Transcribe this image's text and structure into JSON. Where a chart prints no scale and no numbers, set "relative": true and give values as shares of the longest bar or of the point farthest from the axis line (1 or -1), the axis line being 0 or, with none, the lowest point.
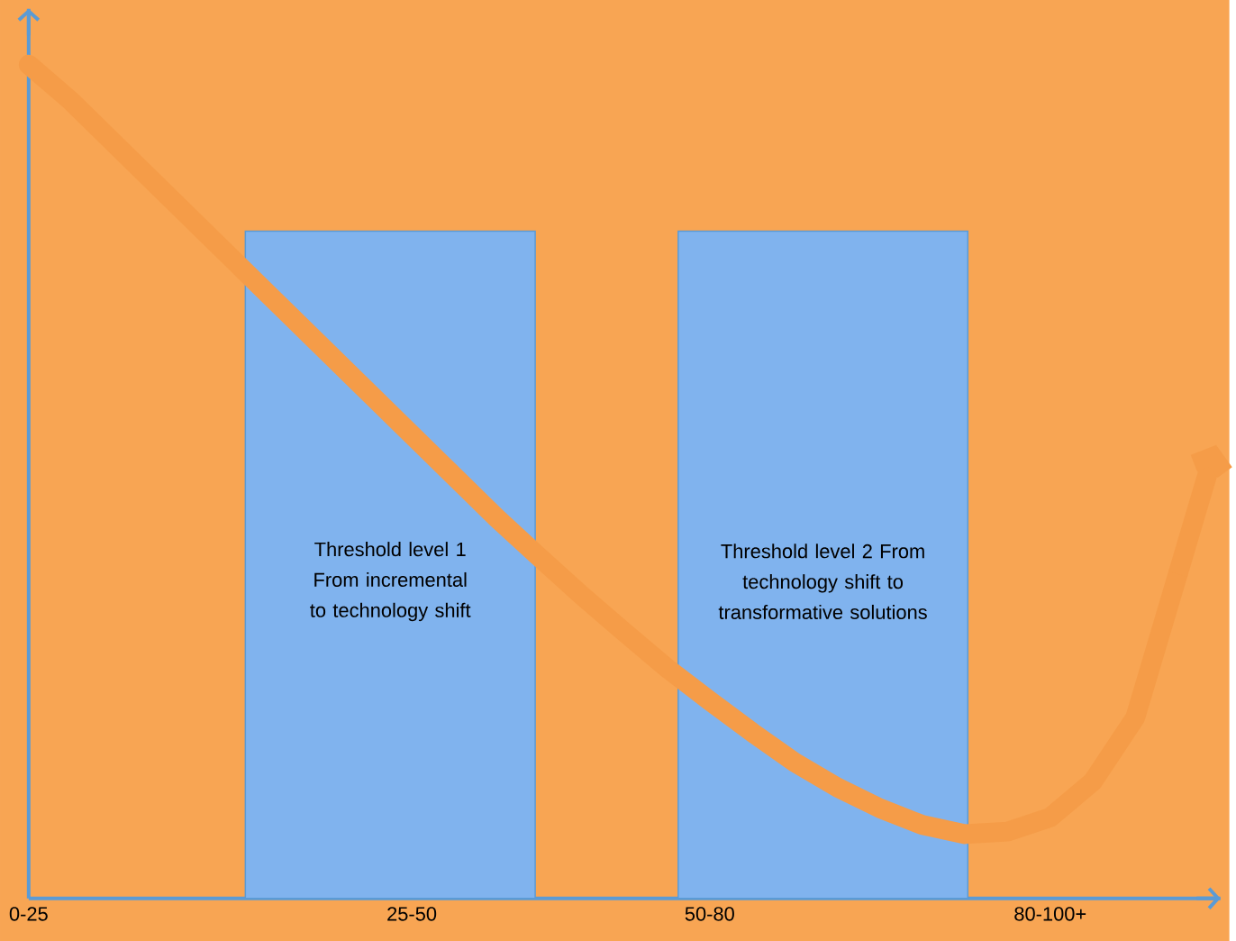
{
  "chart_data": {
    "type": "line",
    "relative": true,
    "categories": [
      "0-25",
      null,
      null,
      null,
      null,
      null,
      null,
      null,
      null,
      "25-50",
      null,
      null,
      null,
      null,
      null,
      null,
      "50-80",
      null,
      null,
      null,
      null,
      null,
      null,
      null,
      "80-100+",
      null,
      null,
      null
    ],
    "annotations": [
      "Threshold level 1 From incremental to technology shift",
      "Threshold level 2 From technology shift to transformative solutions"
    ],
    "series": [
      {
        "color": "#f59c48",
        "values": [
          1.0,
          0.956,
          0.906,
          0.856,
          0.806,
          0.756,
          0.706,
          0.656,
          0.606,
          0.556,
          0.506,
          0.456,
          0.409,
          0.363,
          0.319,
          0.276,
          0.237,
          0.199,
          0.163,
          0.133,
          0.108,
          0.088,
          0.077,
          0.08,
          0.097,
          0.14,
          0.217,
          0.389
        ]
      }
    ]
  }
}
